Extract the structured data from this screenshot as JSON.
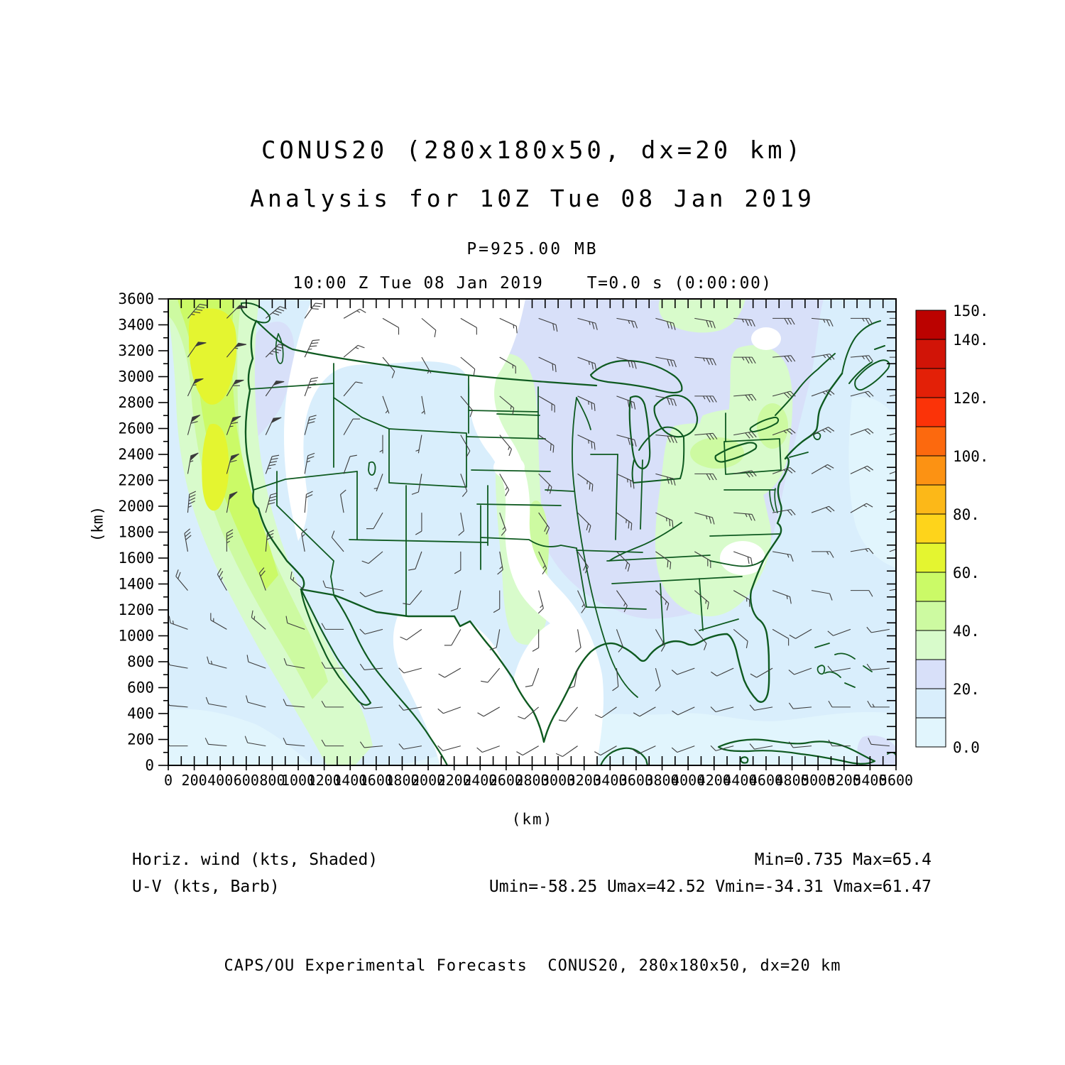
{
  "header": {
    "title": "CONUS20 (280x180x50, dx=20 km)",
    "subtitle": "Analysis for 10Z Tue 08 Jan 2019",
    "pressure_level": "P=925.00 MB",
    "time_line": "10:00 Z Tue 08 Jan 2019    T=0.0 s (0:00:00)"
  },
  "legend": {
    "shaded_label": "Horiz. wind (kts, Shaded)",
    "barb_label": "U-V (kts, Barb)",
    "minmax": "Min=0.735 Max=65.4",
    "uv_minmax": "Umin=-58.25 Umax=42.52 Vmin=-34.31 Vmax=61.47"
  },
  "footer": {
    "credit": "CAPS/OU Experimental Forecasts  CONUS20, 280x180x50, dx=20 km"
  },
  "axes": {
    "x_label": "(km)",
    "y_label": "(km)",
    "x_min": 0,
    "x_max": 5600,
    "y_min": 0,
    "y_max": 3600,
    "label_step": 200,
    "minor_step": 100
  },
  "colorbar": {
    "levels": [
      0,
      10,
      20,
      30,
      40,
      50,
      60,
      70,
      80,
      90,
      100,
      110,
      120,
      130,
      140,
      150
    ],
    "labels": [
      "0.0",
      "20.",
      "40.",
      "60.",
      "80.",
      "100.",
      "120.",
      "140.",
      "150."
    ],
    "label_values": [
      0,
      20,
      40,
      60,
      80,
      100,
      120,
      140,
      150
    ],
    "colors": [
      "#E1F5FD",
      "#D9EEFC",
      "#D8E0F9",
      "#D8FBCB",
      "#CDFAA1",
      "#CBFA67",
      "#E4F530",
      "#FED41B",
      "#FCB818",
      "#FC9213",
      "#FC690E",
      "#FB3308",
      "#E32007",
      "#D11407",
      "#BB0200"
    ]
  },
  "map": {
    "outline_color": "#0E5A20",
    "barb_color": "#3C3C3C",
    "frame_color": "#000000"
  },
  "chart_data": {
    "type": "heatmap",
    "title": "CONUS20 (280x180x50, dx=20 km)",
    "subtitle": "Analysis for 10Z Tue 08 Jan 2019",
    "field": "Horizontal wind speed (kts, shaded) with U-V wind barbs (kts)",
    "pressure_level_mb": 925.0,
    "valid_time": "10:00 Z Tue 08 Jan 2019",
    "forecast_time_s": 0.0,
    "xlabel": "(km)",
    "ylabel": "(km)",
    "xlim": [
      0,
      5600
    ],
    "ylim": [
      0,
      3600
    ],
    "shade_levels_kts": [
      0,
      10,
      20,
      30,
      40,
      50,
      60,
      70,
      80,
      90,
      100,
      110,
      120,
      130,
      140,
      150
    ],
    "stats": {
      "min": 0.735,
      "max": 65.4,
      "umin": -58.25,
      "umax": 42.52,
      "vmin": -34.31,
      "vmax": 61.47
    },
    "wind_grid": {
      "units": "kts",
      "dir_convention": "meteorological degrees (direction wind is FROM)",
      "x_km": [
        150,
        450,
        750,
        1050,
        1350,
        1650,
        1950,
        2250,
        2550,
        2850,
        3150,
        3450,
        3750,
        4050,
        4350,
        4650,
        4950,
        5250,
        5550
      ],
      "y_km": [
        3450,
        3150,
        2850,
        2550,
        2250,
        1950,
        1650,
        1350,
        1050,
        750,
        450,
        150
      ],
      "cells": [
        [
          [
            220,
            45
          ],
          [
            225,
            50
          ],
          [
            230,
            40
          ],
          [
            215,
            30
          ],
          [
            240,
            15
          ],
          [
            300,
            10
          ],
          [
            310,
            8
          ],
          [
            300,
            10
          ],
          [
            295,
            15
          ],
          [
            290,
            20
          ],
          [
            285,
            25
          ],
          [
            280,
            25
          ],
          [
            285,
            30
          ],
          [
            280,
            30
          ],
          [
            275,
            35
          ],
          [
            270,
            30
          ],
          [
            275,
            25
          ],
          [
            270,
            25
          ],
          [
            270,
            30
          ]
        ],
        [
          [
            215,
            50
          ],
          [
            220,
            55
          ],
          [
            225,
            45
          ],
          [
            205,
            35
          ],
          [
            230,
            15
          ],
          [
            320,
            8
          ],
          [
            330,
            5
          ],
          [
            310,
            10
          ],
          [
            300,
            15
          ],
          [
            295,
            20
          ],
          [
            290,
            25
          ],
          [
            285,
            30
          ],
          [
            280,
            30
          ],
          [
            275,
            35
          ],
          [
            270,
            35
          ],
          [
            265,
            30
          ],
          [
            260,
            25
          ],
          [
            265,
            25
          ],
          [
            270,
            25
          ]
        ],
        [
          [
            205,
            55
          ],
          [
            210,
            60
          ],
          [
            215,
            50
          ],
          [
            200,
            35
          ],
          [
            220,
            10
          ],
          [
            340,
            5
          ],
          [
            350,
            5
          ],
          [
            320,
            10
          ],
          [
            310,
            15
          ],
          [
            300,
            20
          ],
          [
            295,
            25
          ],
          [
            290,
            30
          ],
          [
            280,
            30
          ],
          [
            270,
            35
          ],
          [
            265,
            30
          ],
          [
            255,
            30
          ],
          [
            250,
            25
          ],
          [
            255,
            20
          ],
          [
            260,
            25
          ]
        ],
        [
          [
            195,
            60
          ],
          [
            200,
            65
          ],
          [
            205,
            50
          ],
          [
            195,
            30
          ],
          [
            210,
            10
          ],
          [
            0,
            5
          ],
          [
            10,
            5
          ],
          [
            330,
            10
          ],
          [
            320,
            15
          ],
          [
            305,
            20
          ],
          [
            295,
            25
          ],
          [
            285,
            30
          ],
          [
            275,
            30
          ],
          [
            265,
            30
          ],
          [
            260,
            30
          ],
          [
            250,
            25
          ],
          [
            245,
            25
          ],
          [
            250,
            20
          ],
          [
            255,
            20
          ]
        ],
        [
          [
            190,
            55
          ],
          [
            195,
            60
          ],
          [
            200,
            45
          ],
          [
            190,
            25
          ],
          [
            200,
            10
          ],
          [
            20,
            5
          ],
          [
            10,
            8
          ],
          [
            340,
            10
          ],
          [
            330,
            15
          ],
          [
            315,
            20
          ],
          [
            305,
            25
          ],
          [
            295,
            25
          ],
          [
            285,
            30
          ],
          [
            270,
            30
          ],
          [
            260,
            30
          ],
          [
            250,
            25
          ],
          [
            240,
            20
          ],
          [
            245,
            20
          ],
          [
            250,
            20
          ]
        ],
        [
          [
            185,
            45
          ],
          [
            190,
            50
          ],
          [
            195,
            40
          ],
          [
            185,
            20
          ],
          [
            170,
            10
          ],
          [
            30,
            8
          ],
          [
            0,
            10
          ],
          [
            350,
            12
          ],
          [
            340,
            15
          ],
          [
            325,
            20
          ],
          [
            315,
            20
          ],
          [
            305,
            25
          ],
          [
            295,
            25
          ],
          [
            285,
            25
          ],
          [
            275,
            25
          ],
          [
            260,
            20
          ],
          [
            250,
            20
          ],
          [
            240,
            15
          ],
          [
            245,
            15
          ]
        ],
        [
          [
            170,
            30
          ],
          [
            180,
            35
          ],
          [
            185,
            30
          ],
          [
            170,
            15
          ],
          [
            140,
            10
          ],
          [
            50,
            10
          ],
          [
            20,
            10
          ],
          [
            0,
            12
          ],
          [
            350,
            15
          ],
          [
            335,
            15
          ],
          [
            325,
            20
          ],
          [
            315,
            20
          ],
          [
            305,
            20
          ],
          [
            300,
            20
          ],
          [
            290,
            20
          ],
          [
            280,
            15
          ],
          [
            270,
            15
          ],
          [
            260,
            15
          ],
          [
            250,
            15
          ]
        ],
        [
          [
            140,
            20
          ],
          [
            150,
            25
          ],
          [
            160,
            20
          ],
          [
            130,
            15
          ],
          [
            100,
            10
          ],
          [
            70,
            10
          ],
          [
            40,
            10
          ],
          [
            10,
            12
          ],
          [
            0,
            12
          ],
          [
            345,
            15
          ],
          [
            335,
            15
          ],
          [
            325,
            15
          ],
          [
            315,
            15
          ],
          [
            310,
            15
          ],
          [
            300,
            15
          ],
          [
            290,
            15
          ],
          [
            280,
            10
          ],
          [
            270,
            10
          ],
          [
            260,
            10
          ]
        ],
        [
          [
            110,
            15
          ],
          [
            120,
            15
          ],
          [
            130,
            15
          ],
          [
            110,
            10
          ],
          [
            90,
            10
          ],
          [
            75,
            10
          ],
          [
            55,
            10
          ],
          [
            30,
            10
          ],
          [
            10,
            10
          ],
          [
            0,
            10
          ],
          [
            350,
            10
          ],
          [
            340,
            10
          ],
          [
            330,
            15
          ],
          [
            320,
            10
          ],
          [
            310,
            10
          ],
          [
            300,
            10
          ],
          [
            60,
            10
          ],
          [
            70,
            10
          ],
          [
            80,
            10
          ]
        ],
        [
          [
            100,
            10
          ],
          [
            105,
            15
          ],
          [
            110,
            10
          ],
          [
            100,
            10
          ],
          [
            90,
            10
          ],
          [
            85,
            10
          ],
          [
            75,
            10
          ],
          [
            60,
            10
          ],
          [
            40,
            10
          ],
          [
            20,
            10
          ],
          [
            10,
            10
          ],
          [
            355,
            10
          ],
          [
            345,
            10
          ],
          [
            70,
            10
          ],
          [
            65,
            10
          ],
          [
            60,
            10
          ],
          [
            70,
            10
          ],
          [
            80,
            10
          ],
          [
            85,
            10
          ]
        ],
        [
          [
            95,
            10
          ],
          [
            100,
            10
          ],
          [
            105,
            10
          ],
          [
            95,
            10
          ],
          [
            90,
            10
          ],
          [
            85,
            10
          ],
          [
            80,
            10
          ],
          [
            70,
            10
          ],
          [
            60,
            10
          ],
          [
            50,
            10
          ],
          [
            40,
            10
          ],
          [
            55,
            10
          ],
          [
            60,
            10
          ],
          [
            65,
            10
          ],
          [
            75,
            10
          ],
          [
            80,
            10
          ],
          [
            85,
            10
          ],
          [
            90,
            10
          ],
          [
            90,
            15
          ]
        ],
        [
          [
            90,
            10
          ],
          [
            95,
            10
          ],
          [
            100,
            10
          ],
          [
            95,
            10
          ],
          [
            90,
            10
          ],
          [
            85,
            10
          ],
          [
            80,
            10
          ],
          [
            75,
            10
          ],
          [
            70,
            10
          ],
          [
            60,
            10
          ],
          [
            55,
            10
          ],
          [
            60,
            10
          ],
          [
            65,
            10
          ],
          [
            70,
            10
          ],
          [
            75,
            10
          ],
          [
            80,
            10
          ],
          [
            85,
            10
          ],
          [
            90,
            10
          ],
          [
            95,
            10
          ]
        ]
      ]
    }
  }
}
